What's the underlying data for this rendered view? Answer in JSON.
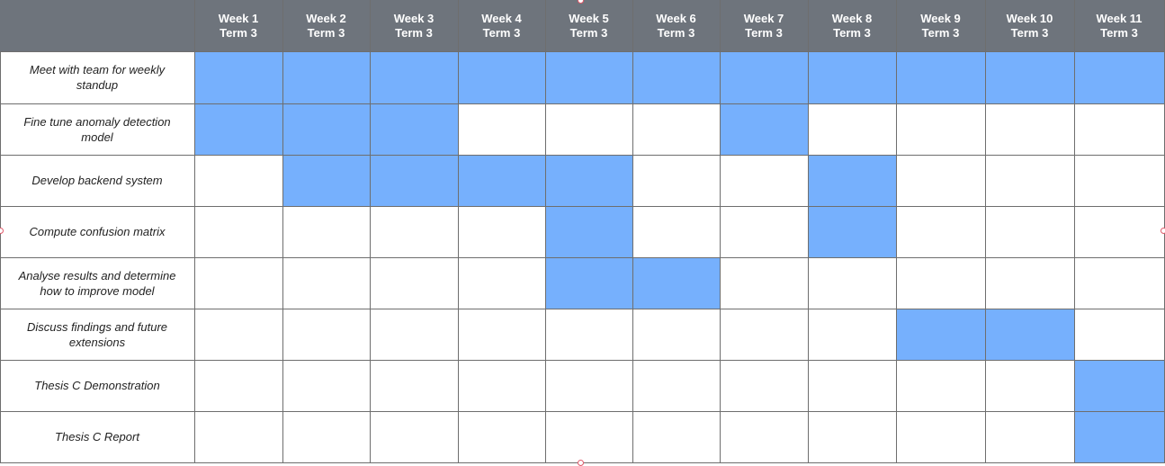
{
  "weeks": [
    {
      "week": "Week 1",
      "term": "Term 3"
    },
    {
      "week": "Week 2",
      "term": "Term 3"
    },
    {
      "week": "Week 3",
      "term": "Term 3"
    },
    {
      "week": "Week 4",
      "term": "Term 3"
    },
    {
      "week": "Week 5",
      "term": "Term 3"
    },
    {
      "week": "Week 6",
      "term": "Term 3"
    },
    {
      "week": "Week 7",
      "term": "Term 3"
    },
    {
      "week": "Week 8",
      "term": "Term 3"
    },
    {
      "week": "Week 9",
      "term": "Term 3"
    },
    {
      "week": "Week 10",
      "term": "Term 3"
    },
    {
      "week": "Week 11",
      "term": "Term 3"
    }
  ],
  "tasks": [
    {
      "label": "Meet with team for weekly standup",
      "active_weeks": [
        1,
        2,
        3,
        4,
        5,
        6,
        7,
        8,
        9,
        10,
        11
      ]
    },
    {
      "label": "Fine tune anomaly detection model",
      "active_weeks": [
        1,
        2,
        3,
        7
      ]
    },
    {
      "label": "Develop backend system",
      "active_weeks": [
        2,
        3,
        4,
        5,
        8
      ]
    },
    {
      "label": "Compute confusion matrix",
      "active_weeks": [
        5,
        8
      ]
    },
    {
      "label": "Analyse results and determine how to improve model",
      "active_weeks": [
        5,
        6
      ]
    },
    {
      "label": "Discuss findings and future extensions",
      "active_weeks": [
        9,
        10
      ]
    },
    {
      "label": "Thesis C Demonstration",
      "active_weeks": [
        11
      ]
    },
    {
      "label": "Thesis C Report",
      "active_weeks": [
        11
      ]
    }
  ],
  "colors": {
    "header": "#6e747c",
    "bar": "#76b0fd",
    "grid": "#6e6e6e"
  }
}
